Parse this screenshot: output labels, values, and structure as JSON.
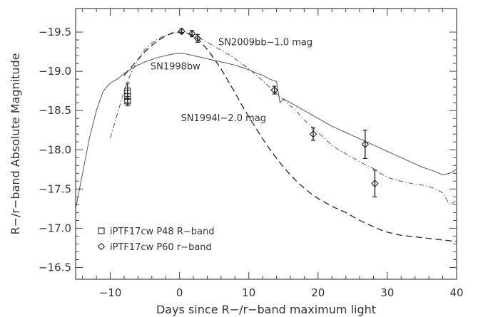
{
  "chart_data": {
    "type": "line",
    "title": "",
    "xlabel": "Days since R−/r−band maximum light",
    "ylabel": "R−/r−band Absolute Magnitude",
    "xlim": [
      -15,
      40
    ],
    "ylim": [
      -16.35,
      -19.8
    ],
    "y_axis_inverted": true,
    "grid": false,
    "x_ticks": [
      -10,
      0,
      10,
      20,
      30,
      40
    ],
    "y_ticks": [
      -16.5,
      -17.0,
      -17.5,
      -18.0,
      -18.5,
      -19.0,
      -19.5
    ],
    "x_tick_labels": [
      "−10",
      "0",
      "10",
      "20",
      "30",
      "40"
    ],
    "y_tick_labels": [
      "−16.5",
      "−17.0",
      "−17.5",
      "−18.0",
      "−18.5",
      "−19.0",
      "−19.5"
    ],
    "series": [
      {
        "name": "SN1998bw",
        "style": "solid",
        "color": "#555555",
        "x": [
          -15,
          -14,
          -13,
          -12,
          -11,
          -10,
          -9,
          -8,
          -7,
          -6,
          -5,
          -4,
          -3,
          -2,
          -1,
          0,
          1,
          2,
          3,
          4,
          5,
          6,
          7,
          8,
          9,
          10,
          11,
          12,
          13,
          14,
          14.5,
          15,
          16,
          17,
          18,
          19,
          20,
          21,
          22,
          23,
          24,
          25,
          26,
          27,
          28,
          29,
          30,
          31,
          32,
          33,
          34,
          35,
          36,
          37,
          38,
          39,
          40
        ],
        "y": [
          -17.25,
          -17.7,
          -18.15,
          -18.5,
          -18.75,
          -18.85,
          -18.9,
          -18.97,
          -19.03,
          -19.08,
          -19.12,
          -19.15,
          -19.18,
          -19.2,
          -19.22,
          -19.23,
          -19.22,
          -19.2,
          -19.18,
          -19.16,
          -19.14,
          -19.12,
          -19.1,
          -19.08,
          -19.05,
          -19.02,
          -18.98,
          -18.95,
          -18.9,
          -18.87,
          -18.6,
          -18.65,
          -18.6,
          -18.55,
          -18.5,
          -18.45,
          -18.4,
          -18.35,
          -18.3,
          -18.26,
          -18.22,
          -18.18,
          -18.14,
          -18.1,
          -18.06,
          -18.02,
          -17.98,
          -17.94,
          -17.9,
          -17.86,
          -17.82,
          -17.78,
          -17.75,
          -17.72,
          -17.68,
          -17.7,
          -17.75
        ]
      },
      {
        "name": "SN2009bb−1.0 mag",
        "style": "dash-dot",
        "color": "#555555",
        "x": [
          -10,
          -9,
          -8,
          -7,
          -6,
          -5,
          -4,
          -3,
          -2,
          -1,
          0,
          1,
          2,
          3,
          4,
          5,
          6,
          7,
          8,
          9,
          10,
          11,
          12,
          13,
          14,
          15,
          16,
          17,
          18,
          19,
          20,
          21,
          22,
          23,
          24,
          25,
          26,
          27,
          28,
          29,
          30,
          31,
          32,
          33,
          34,
          35,
          36,
          37,
          38,
          39,
          40
        ],
        "y": [
          -18.15,
          -18.45,
          -18.75,
          -18.98,
          -19.15,
          -19.28,
          -19.36,
          -19.42,
          -19.46,
          -19.48,
          -19.5,
          -19.49,
          -19.46,
          -19.42,
          -19.37,
          -19.32,
          -19.27,
          -19.22,
          -19.16,
          -19.1,
          -19.03,
          -18.96,
          -18.88,
          -18.8,
          -18.72,
          -18.64,
          -18.56,
          -18.48,
          -18.38,
          -18.3,
          -18.22,
          -18.14,
          -18.06,
          -18.0,
          -17.95,
          -17.9,
          -17.85,
          -17.8,
          -17.76,
          -17.7,
          -17.65,
          -17.62,
          -17.6,
          -17.58,
          -17.56,
          -17.55,
          -17.53,
          -17.5,
          -17.45,
          -17.3,
          -17.35
        ]
      },
      {
        "name": "SN1994I−2.0 mag",
        "style": "dashed",
        "color": "#333333",
        "x": [
          -8,
          -7,
          -6,
          -5,
          -4,
          -3,
          -2,
          -1,
          0,
          1,
          2,
          3,
          4,
          5,
          6,
          7,
          8,
          9,
          10,
          11,
          12,
          13,
          14,
          15,
          16,
          17,
          18,
          19,
          20,
          21,
          22,
          23,
          24,
          25,
          26,
          27,
          28,
          29,
          30,
          31,
          32,
          33,
          34,
          35,
          36,
          37,
          38,
          39,
          40
        ],
        "y": [
          -18.95,
          -19.05,
          -19.15,
          -19.25,
          -19.33,
          -19.4,
          -19.45,
          -19.49,
          -19.5,
          -19.49,
          -19.45,
          -19.38,
          -19.28,
          -19.16,
          -19.03,
          -18.88,
          -18.73,
          -18.57,
          -18.42,
          -18.28,
          -18.14,
          -18.01,
          -17.89,
          -17.78,
          -17.68,
          -17.59,
          -17.51,
          -17.44,
          -17.38,
          -17.33,
          -17.28,
          -17.24,
          -17.2,
          -17.15,
          -17.1,
          -17.06,
          -17.02,
          -16.98,
          -16.95,
          -16.93,
          -16.91,
          -16.9,
          -16.89,
          -16.88,
          -16.87,
          -16.86,
          -16.85,
          -16.84,
          -16.83
        ]
      }
    ],
    "points": [
      {
        "name": "iPTF17cw P48 R−band",
        "marker": "square",
        "data": [
          {
            "x": -7.5,
            "y": -18.75,
            "err": 0.1
          },
          {
            "x": -7.5,
            "y": -18.68,
            "err": 0.08
          },
          {
            "x": -7.5,
            "y": -18.62,
            "err": 0.06
          }
        ]
      },
      {
        "name": "iPTF17cw P60 r−band",
        "marker": "diamond",
        "data": [
          {
            "x": 0.3,
            "y": -19.51,
            "err": 0.03
          },
          {
            "x": 1.8,
            "y": -19.48,
            "err": 0.04
          },
          {
            "x": 2.6,
            "y": -19.42,
            "err": 0.05
          },
          {
            "x": 13.7,
            "y": -18.76,
            "err": 0.05
          },
          {
            "x": 19.3,
            "y": -18.2,
            "err": 0.08
          },
          {
            "x": 26.8,
            "y": -18.07,
            "err": 0.18
          },
          {
            "x": 28.2,
            "y": -17.57,
            "err": 0.17
          }
        ]
      }
    ],
    "annotations": [
      {
        "text": "SN2009bb−1.0 mag",
        "x": 5.6,
        "y": -19.37
      },
      {
        "text": "SN1998bw",
        "x": -4.2,
        "y": -19.06
      },
      {
        "text": "SN1994I−2.0 mag",
        "x": 0.2,
        "y": -18.4
      }
    ],
    "legend": {
      "placement": "lower-left",
      "entries": [
        {
          "marker": "square",
          "label": "iPTF17cw P48 R−band"
        },
        {
          "marker": "diamond",
          "label": "iPTF17cw P60 r−band"
        }
      ]
    }
  }
}
